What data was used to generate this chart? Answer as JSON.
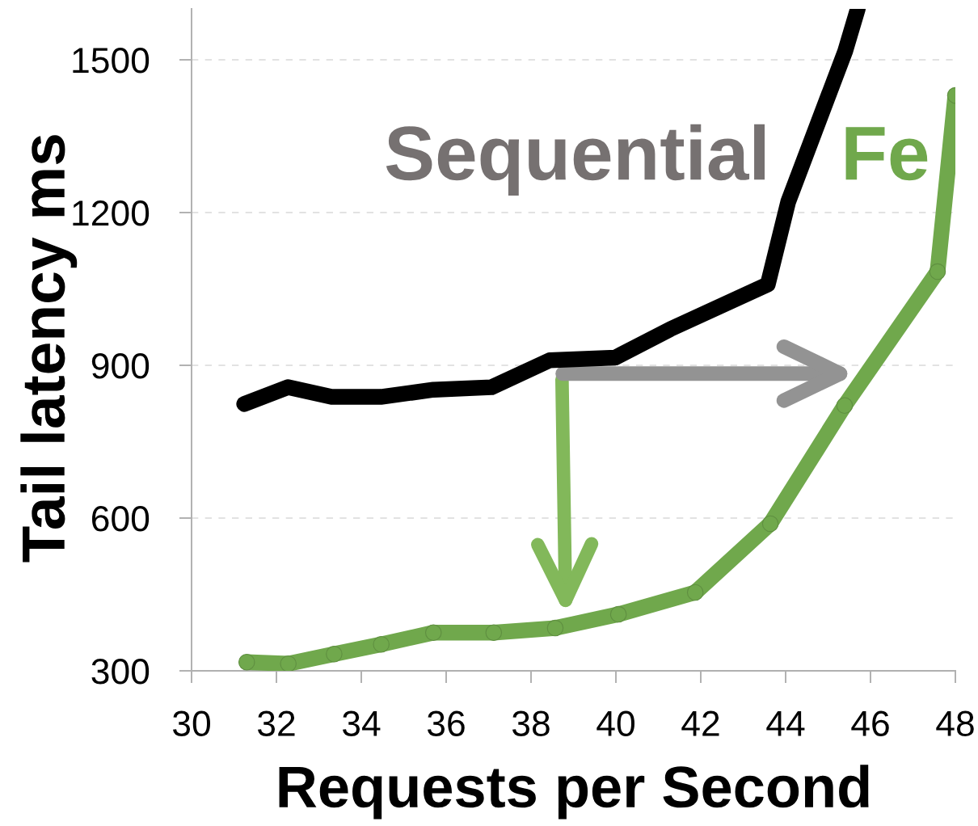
{
  "chart_data": {
    "type": "line",
    "xlabel": "Requests per Second",
    "ylabel": "Tail latency ms",
    "xlim": [
      30,
      48
    ],
    "xticks": [
      30,
      32,
      34,
      36,
      38,
      40,
      42,
      44,
      46,
      48
    ],
    "ylim": [
      300,
      1600
    ],
    "yticks": [
      300,
      600,
      900,
      1200,
      1500
    ],
    "grid": "y",
    "line_style": "solid",
    "series": [
      {
        "name": "Sequential",
        "color": "#000000",
        "x": [
          31.24,
          32.27,
          33.3,
          34.46,
          35.7,
          37.07,
          38.44,
          39.98,
          41.28,
          43.58,
          44.06,
          45.4,
          45.7
        ],
        "values": [
          824,
          857,
          838,
          838,
          852,
          857,
          910,
          915,
          971,
          1059,
          1221,
          1516,
          1600
        ]
      },
      {
        "name": "Fe",
        "color": "#70a84c",
        "marker": "circle",
        "x": [
          31.3,
          32.28,
          33.36,
          34.47,
          35.7,
          37.12,
          38.57,
          40.06,
          41.87,
          43.64,
          45.39,
          47.58,
          48
        ],
        "values": [
          317,
          314,
          333,
          352,
          375,
          375,
          384,
          411,
          454,
          589,
          821,
          1084,
          1430
        ]
      }
    ]
  }
}
